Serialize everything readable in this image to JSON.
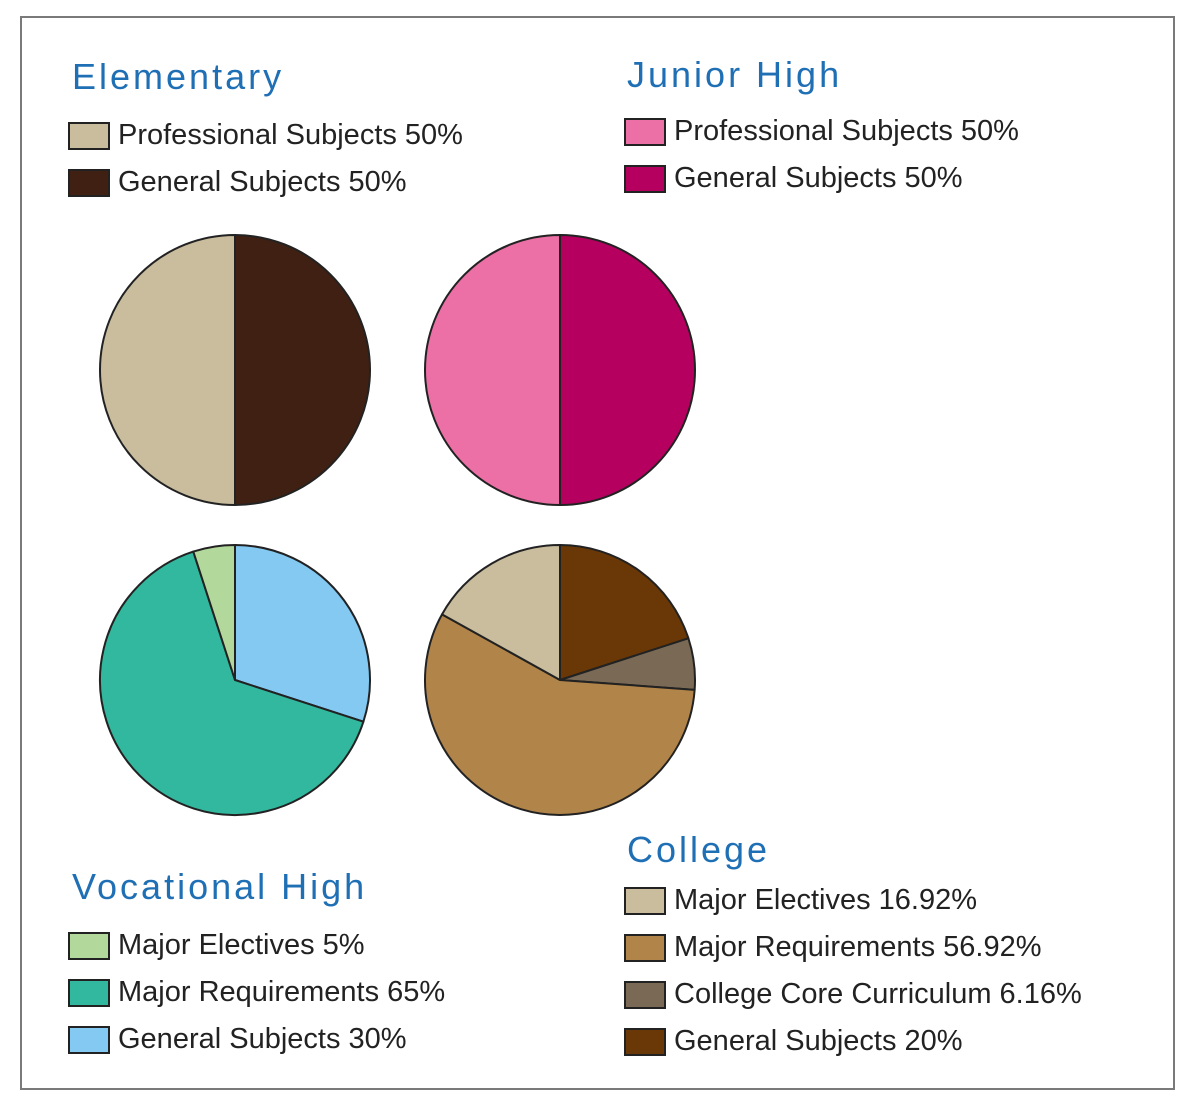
{
  "chart_data": [
    {
      "type": "pie",
      "title": "Elementary",
      "slices": [
        {
          "label": "Professional Subjects 50%",
          "value": 50,
          "color": "#c9bd9d"
        },
        {
          "label": "General Subjects 50%",
          "value": 50,
          "color": "#402012"
        }
      ]
    },
    {
      "type": "pie",
      "title": "Junior High",
      "slices": [
        {
          "label": "Professional Subjects 50%",
          "value": 50,
          "color": "#ec6fa6"
        },
        {
          "label": "General Subjects 50%",
          "value": 50,
          "color": "#b5005f"
        }
      ]
    },
    {
      "type": "pie",
      "title": "Vocational High",
      "slices": [
        {
          "label": "Major Electives 5%",
          "value": 5,
          "color": "#b2d89b"
        },
        {
          "label": "Major Requirements 65%",
          "value": 65,
          "color": "#31b89e"
        },
        {
          "label": "General Subjects 30%",
          "value": 30,
          "color": "#83c9f2"
        }
      ]
    },
    {
      "type": "pie",
      "title": "College",
      "slices": [
        {
          "label": "Major Electives 16.92%",
          "value": 16.92,
          "color": "#c9bd9d"
        },
        {
          "label": "Major Requirements 56.92%",
          "value": 56.92,
          "color": "#b18449"
        },
        {
          "label": "College Core Curriculum 6.16%",
          "value": 6.16,
          "color": "#7a6a55"
        },
        {
          "label": "General Subjects 20%",
          "value": 20,
          "color": "#6a3806"
        }
      ]
    }
  ]
}
